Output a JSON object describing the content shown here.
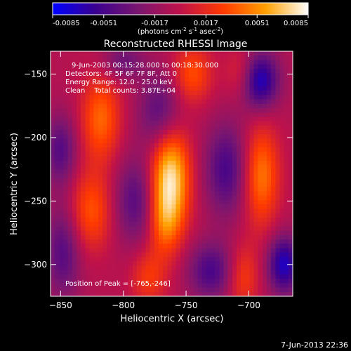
{
  "chart_data": {
    "type": "heatmap",
    "title": "Reconstructed RHESSI Image",
    "xlabel": "Heliocentric X (arcsec)",
    "ylabel": "Heliocentric Y (arcsec)",
    "xlim": [
      -858,
      -665
    ],
    "ylim": [
      -325,
      -132
    ],
    "x_ticks": [
      -850,
      -800,
      -750,
      -700
    ],
    "y_ticks": [
      -300,
      -250,
      -200,
      -150
    ],
    "colorbar": {
      "range": [
        -0.0085,
        0.0085
      ],
      "ticks": [
        "-0.0085",
        "-0.0051",
        "-0.0017",
        "0.0017",
        "0.0051",
        "0.0085"
      ],
      "unit_text": "(photons cm",
      "unit_sup1": "-2",
      "unit_mid": " s",
      "unit_sup2": "-1",
      "unit_mid2": " asec",
      "unit_sup3": "-2",
      "unit_end": ")"
    },
    "colormap": [
      "#0000ff",
      "#3a0090",
      "#7a1670",
      "#c0124a",
      "#ff3a00",
      "#ffa000",
      "#ffffff"
    ],
    "info_lines": [
      "9-Jun-2003 00:15:28.000 to 00:18:30.000",
      "Detectors: 4F 5F 6F 7F 8F, Att 0",
      "Energy Range: 12.0 - 25.0 keV",
      "Clean    Total counts: 3.87E+04"
    ],
    "peak_text": "Position of Peak = [-765,-246]",
    "blobs": [
      {
        "x": -763,
        "y": -232,
        "value": 0.0085,
        "sx": 11,
        "sy": 30
      },
      {
        "x": -768,
        "y": -268,
        "value": 0.0028,
        "sx": 9,
        "sy": 18
      },
      {
        "x": -818,
        "y": -185,
        "value": 0.0045,
        "sx": 11,
        "sy": 24
      },
      {
        "x": -826,
        "y": -258,
        "value": 0.004,
        "sx": 12,
        "sy": 22
      },
      {
        "x": -780,
        "y": -310,
        "value": 0.003,
        "sx": 10,
        "sy": 16
      },
      {
        "x": -745,
        "y": -150,
        "value": 0.0038,
        "sx": 11,
        "sy": 16
      },
      {
        "x": -690,
        "y": -230,
        "value": 0.005,
        "sx": 10,
        "sy": 28
      },
      {
        "x": -705,
        "y": -150,
        "value": 0.003,
        "sx": 9,
        "sy": 15
      },
      {
        "x": -705,
        "y": -310,
        "value": 0.0032,
        "sx": 9,
        "sy": 18
      },
      {
        "x": -770,
        "y": -182,
        "value": -0.0045,
        "sx": 12,
        "sy": 22
      },
      {
        "x": -790,
        "y": -250,
        "value": -0.004,
        "sx": 12,
        "sy": 24
      },
      {
        "x": -730,
        "y": -305,
        "value": -0.0045,
        "sx": 13,
        "sy": 16
      },
      {
        "x": -848,
        "y": -290,
        "value": -0.004,
        "sx": 10,
        "sy": 26
      },
      {
        "x": -850,
        "y": -210,
        "value": -0.004,
        "sx": 9,
        "sy": 20
      },
      {
        "x": -718,
        "y": -225,
        "value": -0.0045,
        "sx": 12,
        "sy": 26
      },
      {
        "x": -692,
        "y": -155,
        "value": -0.007,
        "sx": 11,
        "sy": 16
      },
      {
        "x": -672,
        "y": -300,
        "value": -0.0065,
        "sx": 9,
        "sy": 16
      },
      {
        "x": -800,
        "y": -140,
        "value": -0.003,
        "sx": 12,
        "sy": 10
      }
    ]
  },
  "footer": {
    "date": "7-Jun-2013 22:36"
  }
}
